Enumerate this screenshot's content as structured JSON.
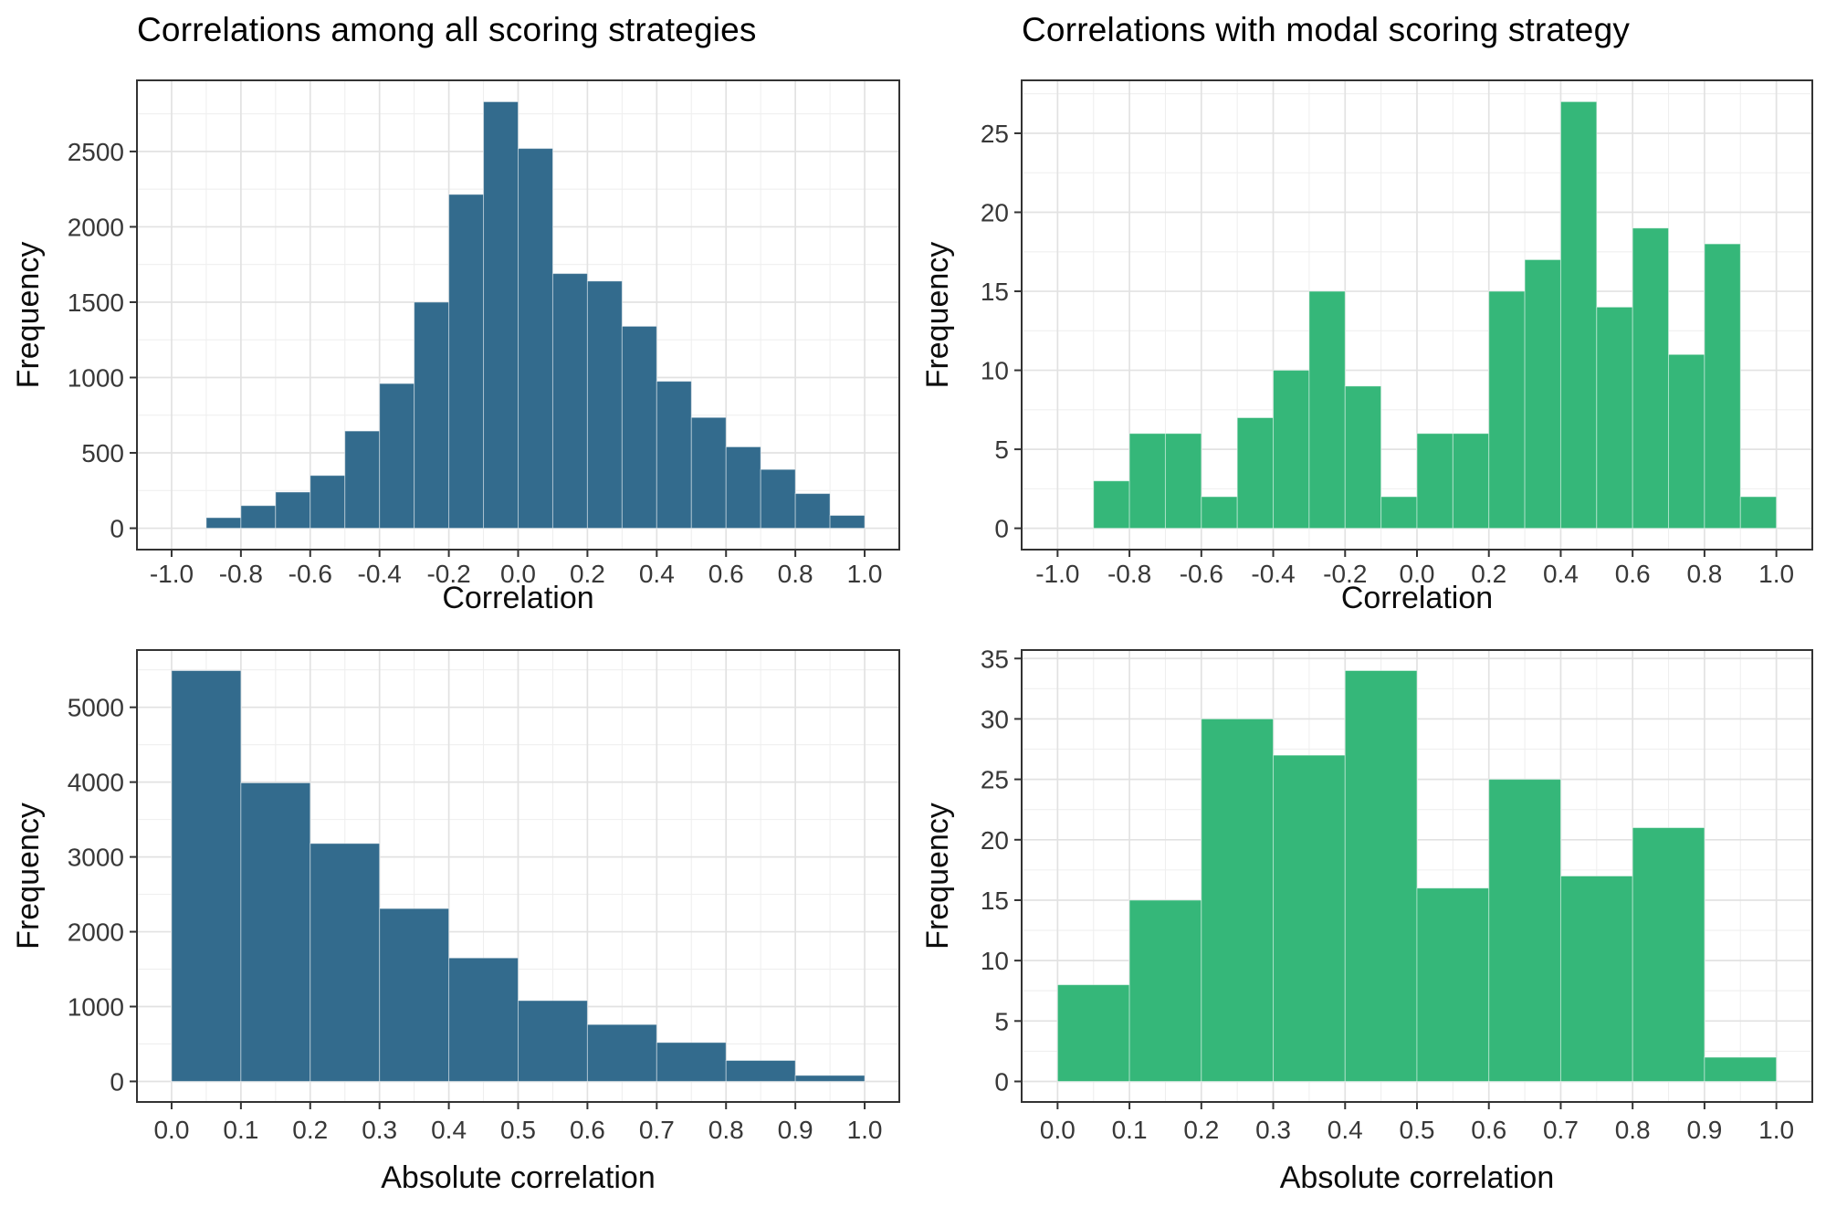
{
  "page": {
    "background": "#ffffff"
  },
  "chart_data": [
    {
      "type": "bar",
      "variant": "histogram",
      "title": "Correlations among all scoring strategies",
      "xlabel": "Correlation",
      "ylabel": "Frequency",
      "color": "#336b8d",
      "bin_start": -0.9,
      "bin_width": 0.1,
      "values": [
        70,
        150,
        240,
        350,
        645,
        960,
        1500,
        2215,
        2830,
        2520,
        1690,
        1640,
        1340,
        975,
        735,
        540,
        390,
        230,
        85
      ],
      "x_tick_values": [
        -1.0,
        -0.8,
        -0.6,
        -0.4,
        -0.2,
        0.0,
        0.2,
        0.4,
        0.6,
        0.8,
        1.0
      ],
      "x_tick_labels": [
        "-1.0",
        "-0.8",
        "-0.6",
        "-0.4",
        "-0.2",
        "0.0",
        "0.2",
        "0.4",
        "0.6",
        "0.8",
        "1.0"
      ],
      "y_tick_values": [
        0,
        500,
        1000,
        1500,
        2000,
        2500
      ],
      "y_tick_labels": [
        "0",
        "500",
        "1000",
        "1500",
        "2000",
        "2500"
      ],
      "xlim": [
        -1.1,
        1.1
      ],
      "ylim": [
        -142,
        2972
      ],
      "grid": "major+minor",
      "legend": "none"
    },
    {
      "type": "bar",
      "variant": "histogram",
      "title": "Correlations with modal scoring strategy",
      "xlabel": "Correlation",
      "ylabel": "Frequency",
      "color": "#35b779",
      "bin_start": -0.9,
      "bin_width": 0.1,
      "values": [
        3,
        6,
        6,
        2,
        7,
        10,
        15,
        9,
        2,
        6,
        6,
        15,
        17,
        27,
        14,
        19,
        11,
        18,
        2
      ],
      "x_tick_values": [
        -1.0,
        -0.8,
        -0.6,
        -0.4,
        -0.2,
        0.0,
        0.2,
        0.4,
        0.6,
        0.8,
        1.0
      ],
      "x_tick_labels": [
        "-1.0",
        "-0.8",
        "-0.6",
        "-0.4",
        "-0.2",
        "0.0",
        "0.2",
        "0.4",
        "0.6",
        "0.8",
        "1.0"
      ],
      "y_tick_values": [
        0,
        5,
        10,
        15,
        20,
        25
      ],
      "y_tick_labels": [
        "0",
        "5",
        "10",
        "15",
        "20",
        "25"
      ],
      "xlim": [
        -1.1,
        1.1
      ],
      "ylim": [
        -1.35,
        28.35
      ],
      "grid": "major+minor",
      "legend": "none"
    },
    {
      "type": "bar",
      "variant": "histogram",
      "title": "",
      "xlabel": "Absolute correlation",
      "ylabel": "Frequency",
      "color": "#336b8d",
      "bin_start": 0.0,
      "bin_width": 0.1,
      "values": [
        5490,
        3990,
        3180,
        2310,
        1650,
        1080,
        760,
        520,
        280,
        80
      ],
      "x_tick_values": [
        0.0,
        0.1,
        0.2,
        0.3,
        0.4,
        0.5,
        0.6,
        0.7,
        0.8,
        0.9,
        1.0
      ],
      "x_tick_labels": [
        "0.0",
        "0.1",
        "0.2",
        "0.3",
        "0.4",
        "0.5",
        "0.6",
        "0.7",
        "0.8",
        "0.9",
        "1.0"
      ],
      "y_tick_values": [
        0,
        1000,
        2000,
        3000,
        4000,
        5000
      ],
      "y_tick_labels": [
        "0",
        "1000",
        "2000",
        "3000",
        "4000",
        "5000"
      ],
      "xlim": [
        -0.05,
        1.05
      ],
      "ylim": [
        -275,
        5765
      ],
      "grid": "major+minor",
      "legend": "none"
    },
    {
      "type": "bar",
      "variant": "histogram",
      "title": "",
      "xlabel": "Absolute correlation",
      "ylabel": "Frequency",
      "color": "#35b779",
      "bin_start": 0.0,
      "bin_width": 0.1,
      "values": [
        8,
        15,
        30,
        27,
        34,
        16,
        25,
        17,
        21,
        2
      ],
      "x_tick_values": [
        0.0,
        0.1,
        0.2,
        0.3,
        0.4,
        0.5,
        0.6,
        0.7,
        0.8,
        0.9,
        1.0
      ],
      "x_tick_labels": [
        "0.0",
        "0.1",
        "0.2",
        "0.3",
        "0.4",
        "0.5",
        "0.6",
        "0.7",
        "0.8",
        "0.9",
        "1.0"
      ],
      "y_tick_values": [
        0,
        5,
        10,
        15,
        20,
        25,
        30,
        35
      ],
      "y_tick_labels": [
        "0",
        "5",
        "10",
        "15",
        "20",
        "25",
        "30",
        "35"
      ],
      "xlim": [
        -0.05,
        1.05
      ],
      "ylim": [
        -1.7,
        35.7
      ],
      "grid": "major+minor",
      "legend": "none"
    }
  ]
}
